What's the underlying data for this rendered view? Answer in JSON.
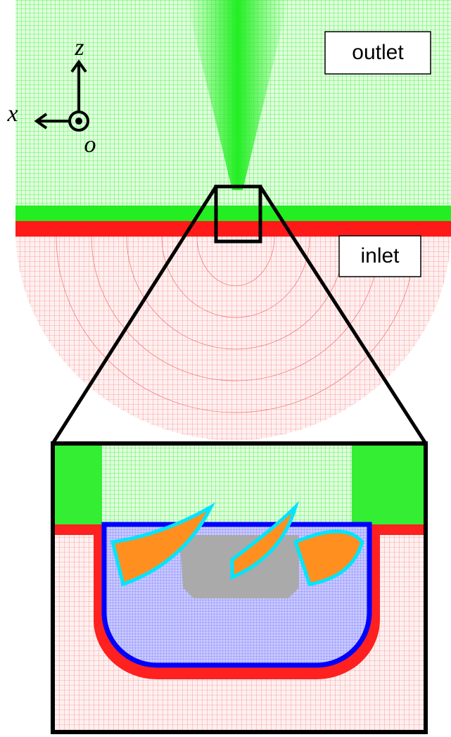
{
  "labels": {
    "outlet": "outlet",
    "inlet": "inlet"
  },
  "axes": {
    "z": "z",
    "x": "x",
    "origin": "o"
  }
}
